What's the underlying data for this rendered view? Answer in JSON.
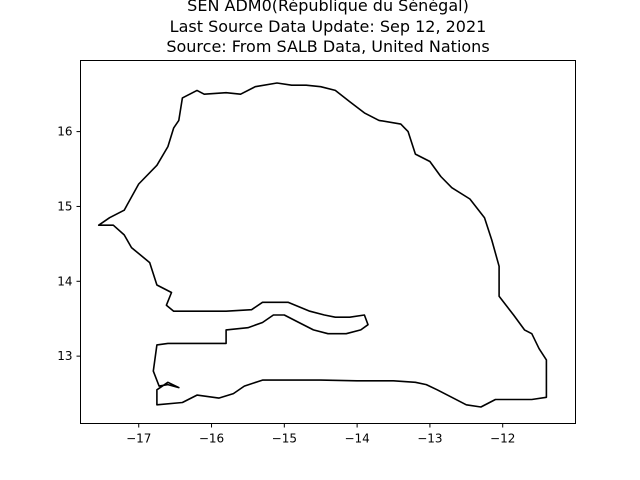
{
  "chart_data": {
    "type": "map",
    "title_lines": [
      "SEN ADM0(République du Sénégal)",
      "Last Source Data Update: Sep 12, 2021",
      "Source: From SALB Data, United Nations"
    ],
    "xlim": [
      -17.8,
      -11.0
    ],
    "ylim": [
      12.1,
      16.95
    ],
    "x_ticks": [
      -17,
      -16,
      -15,
      -14,
      -13,
      -12
    ],
    "y_ticks": [
      13,
      14,
      15,
      16
    ],
    "x_tick_labels": [
      "−17",
      "−16",
      "−15",
      "−14",
      "−13",
      "−12"
    ],
    "y_tick_labels": [
      "13",
      "14",
      "15",
      "16"
    ],
    "boundary": [
      [
        -17.55,
        14.75
      ],
      [
        -17.4,
        14.85
      ],
      [
        -17.2,
        14.95
      ],
      [
        -17.0,
        15.3
      ],
      [
        -16.75,
        15.55
      ],
      [
        -16.6,
        15.8
      ],
      [
        -16.52,
        16.05
      ],
      [
        -16.45,
        16.15
      ],
      [
        -16.4,
        16.45
      ],
      [
        -16.2,
        16.55
      ],
      [
        -16.1,
        16.5
      ],
      [
        -15.8,
        16.52
      ],
      [
        -15.6,
        16.5
      ],
      [
        -15.4,
        16.6
      ],
      [
        -15.1,
        16.65
      ],
      [
        -14.9,
        16.62
      ],
      [
        -14.7,
        16.62
      ],
      [
        -14.5,
        16.6
      ],
      [
        -14.3,
        16.55
      ],
      [
        -14.1,
        16.4
      ],
      [
        -13.9,
        16.25
      ],
      [
        -13.7,
        16.15
      ],
      [
        -13.4,
        16.1
      ],
      [
        -13.3,
        16.0
      ],
      [
        -13.2,
        15.7
      ],
      [
        -13.0,
        15.6
      ],
      [
        -12.85,
        15.4
      ],
      [
        -12.7,
        15.25
      ],
      [
        -12.45,
        15.1
      ],
      [
        -12.25,
        14.85
      ],
      [
        -12.15,
        14.55
      ],
      [
        -12.05,
        14.2
      ],
      [
        -12.05,
        13.8
      ],
      [
        -11.85,
        13.55
      ],
      [
        -11.7,
        13.35
      ],
      [
        -11.6,
        13.3
      ],
      [
        -11.5,
        13.1
      ],
      [
        -11.4,
        12.95
      ],
      [
        -11.4,
        12.8
      ],
      [
        -11.4,
        12.45
      ],
      [
        -11.6,
        12.42
      ],
      [
        -11.9,
        12.42
      ],
      [
        -12.1,
        12.42
      ],
      [
        -12.3,
        12.32
      ],
      [
        -12.5,
        12.35
      ],
      [
        -12.7,
        12.45
      ],
      [
        -12.9,
        12.55
      ],
      [
        -13.05,
        12.62
      ],
      [
        -13.2,
        12.65
      ],
      [
        -13.5,
        12.67
      ],
      [
        -14.0,
        12.67
      ],
      [
        -14.5,
        12.68
      ],
      [
        -15.0,
        12.68
      ],
      [
        -15.3,
        12.68
      ],
      [
        -15.55,
        12.6
      ],
      [
        -15.7,
        12.5
      ],
      [
        -15.9,
        12.44
      ],
      [
        -16.2,
        12.48
      ],
      [
        -16.4,
        12.38
      ],
      [
        -16.75,
        12.35
      ],
      [
        -16.75,
        12.55
      ],
      [
        -16.6,
        12.65
      ],
      [
        -16.45,
        12.58
      ],
      [
        -16.6,
        12.62
      ],
      [
        -16.72,
        12.6
      ],
      [
        -16.8,
        12.8
      ],
      [
        -16.75,
        13.15
      ],
      [
        -16.6,
        13.17
      ],
      [
        -15.8,
        13.17
      ],
      [
        -15.8,
        13.35
      ],
      [
        -15.5,
        13.38
      ],
      [
        -15.3,
        13.45
      ],
      [
        -15.15,
        13.55
      ],
      [
        -15.0,
        13.55
      ],
      [
        -14.8,
        13.45
      ],
      [
        -14.6,
        13.35
      ],
      [
        -14.4,
        13.3
      ],
      [
        -14.15,
        13.3
      ],
      [
        -13.95,
        13.35
      ],
      [
        -13.85,
        13.42
      ],
      [
        -13.9,
        13.55
      ],
      [
        -14.1,
        13.52
      ],
      [
        -14.3,
        13.52
      ],
      [
        -14.45,
        13.55
      ],
      [
        -14.65,
        13.6
      ],
      [
        -14.95,
        13.72
      ],
      [
        -15.15,
        13.72
      ],
      [
        -15.3,
        13.72
      ],
      [
        -15.45,
        13.62
      ],
      [
        -15.8,
        13.6
      ],
      [
        -16.1,
        13.6
      ],
      [
        -16.52,
        13.6
      ],
      [
        -16.62,
        13.68
      ],
      [
        -16.55,
        13.85
      ],
      [
        -16.75,
        13.95
      ],
      [
        -16.85,
        14.25
      ],
      [
        -17.1,
        14.45
      ],
      [
        -17.2,
        14.62
      ],
      [
        -17.35,
        14.75
      ],
      [
        -17.55,
        14.75
      ]
    ]
  }
}
